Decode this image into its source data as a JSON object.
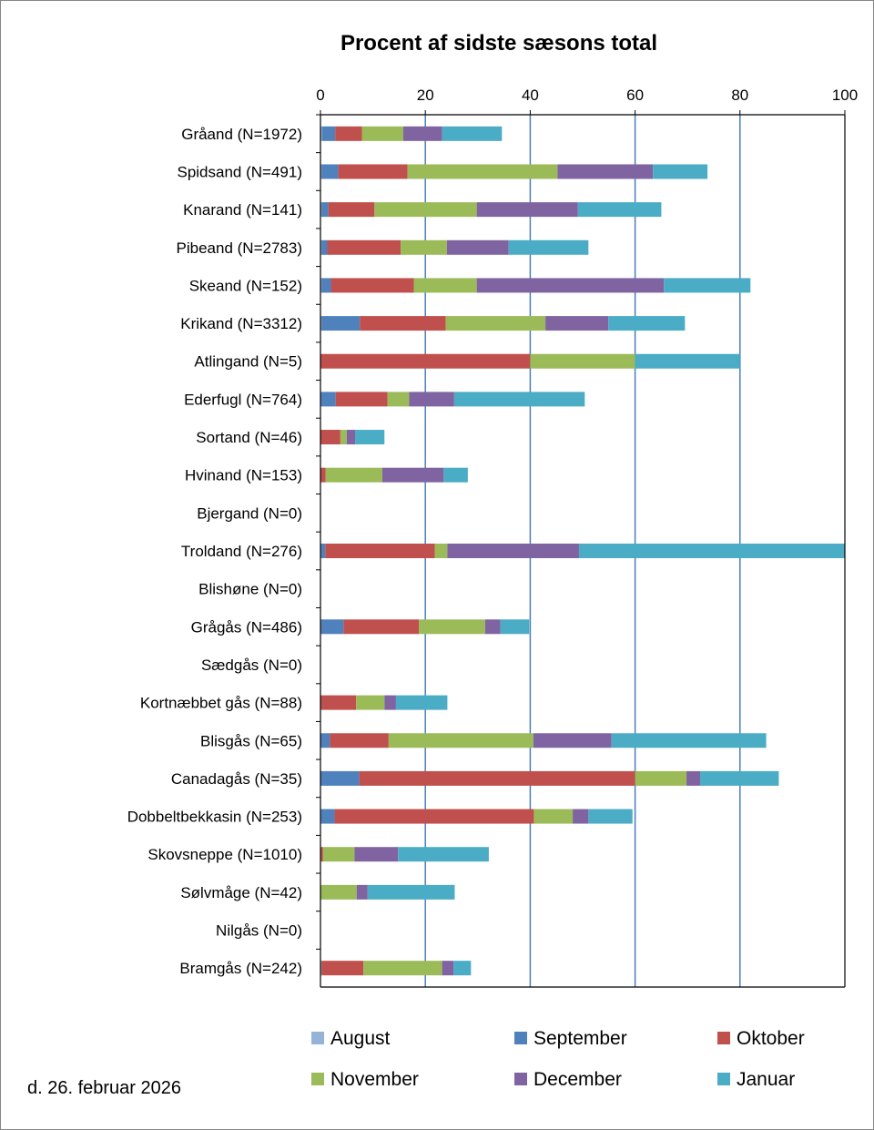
{
  "chart_data": {
    "type": "bar",
    "orientation": "horizontal",
    "stacked": true,
    "title": "Procent af sidste sæsons total",
    "xlabel": "",
    "ylabel": "",
    "xlim": [
      0,
      100
    ],
    "x_ticks": [
      "0",
      "20",
      "40",
      "60",
      "80",
      "100"
    ],
    "x_axis_position": "top",
    "gridlines": "vertical",
    "legend_position": "bottom",
    "categories": [
      "Gråand (N=1972)",
      "Spidsand (N=491)",
      "Knarand (N=141)",
      "Pibeand (N=2783)",
      "Skeand (N=152)",
      "Krikand (N=3312)",
      "Atlingand (N=5)",
      "Ederfugl (N=764)",
      "Sortand (N=46)",
      "Hvinand (N=153)",
      "Bjergand (N=0)",
      "Troldand (N=276)",
      "Blishøne (N=0)",
      "Grågås (N=486)",
      "Sædgås (N=0)",
      "Kortnæbbet gås (N=88)",
      "Blisgås (N=65)",
      "Canadagås (N=35)",
      "Dobbeltbekkasin (N=253)",
      "Skovsneppe (N=1010)",
      "Sølvmåge (N=42)",
      "Nilgås (N=0)",
      "Bramgås (N=242)"
    ],
    "series": [
      {
        "name": "August",
        "color": "#95b3d7",
        "values": [
          0.3,
          0.2,
          0.2,
          0.2,
          0.2,
          0.2,
          0,
          0.1,
          0,
          0,
          0,
          0.1,
          0,
          0.1,
          0,
          0,
          0,
          0,
          0.1,
          0.1,
          0,
          0,
          0.2
        ]
      },
      {
        "name": "September",
        "color": "#4f81bd",
        "values": [
          2.5,
          3.2,
          1.3,
          1.1,
          1.8,
          7.3,
          0,
          2.8,
          0,
          0,
          0,
          0.8,
          0,
          4.3,
          0,
          0,
          1.8,
          7.4,
          2.6,
          0,
          0,
          0,
          0
        ]
      },
      {
        "name": "Oktober",
        "color": "#c0504d",
        "values": [
          5.1,
          13.2,
          8.8,
          14.0,
          15.8,
          16.4,
          40.0,
          9.9,
          3.8,
          1.0,
          0,
          20.9,
          0,
          14.4,
          0,
          6.8,
          11.2,
          52.6,
          38.0,
          0.4,
          0,
          0,
          8.0
        ]
      },
      {
        "name": "November",
        "color": "#9bbb59",
        "values": [
          7.9,
          28.6,
          19.5,
          8.8,
          12.0,
          19.0,
          20.0,
          4.1,
          1.2,
          10.8,
          0,
          2.4,
          0,
          12.6,
          0,
          5.4,
          27.6,
          9.8,
          7.4,
          6.0,
          6.9,
          0,
          15.0
        ]
      },
      {
        "name": "December",
        "color": "#8064a2",
        "values": [
          7.4,
          18.2,
          19.3,
          11.8,
          35.7,
          12.0,
          0,
          8.6,
          1.6,
          11.7,
          0,
          25.1,
          0,
          2.9,
          0,
          2.2,
          14.9,
          2.6,
          3.0,
          8.3,
          2.1,
          0,
          2.2
        ]
      },
      {
        "name": "Januar",
        "color": "#4bacc6",
        "values": [
          11.4,
          10.4,
          15.9,
          15.2,
          16.5,
          14.6,
          20.0,
          24.9,
          5.6,
          4.6,
          0,
          50.7,
          0,
          5.5,
          0,
          9.8,
          29.5,
          15.0,
          8.4,
          17.3,
          16.6,
          0,
          3.3
        ]
      }
    ]
  },
  "footer": {
    "date": "d. 26. februar 2026"
  }
}
